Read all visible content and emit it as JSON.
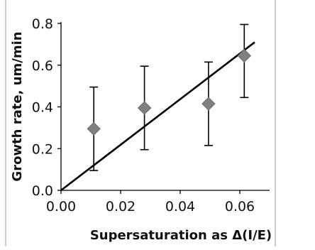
{
  "chart_data": {
    "type": "scatter",
    "xlabel": "Supersaturation as Δ(I/E)",
    "ylabel": "Growth rate, um/min",
    "xlim": [
      0,
      0.07
    ],
    "ylim": [
      0,
      0.8
    ],
    "x_ticks": [
      "0.00",
      "0.02",
      "0.04",
      "0.06"
    ],
    "y_ticks": [
      "0.0",
      "0.2",
      "0.4",
      "0.6",
      "0.8"
    ],
    "x_tick_values": [
      0,
      0.02,
      0.04,
      0.06
    ],
    "y_tick_values": [
      0,
      0.2,
      0.4,
      0.6,
      0.8
    ],
    "grid": false,
    "marker": "diamond",
    "series": [
      {
        "points": [
          {
            "x": 0.011,
            "y": 0.295,
            "err_low": 0.095,
            "err_high": 0.495
          },
          {
            "x": 0.028,
            "y": 0.395,
            "err_low": 0.195,
            "err_high": 0.595
          },
          {
            "x": 0.0495,
            "y": 0.415,
            "err_low": 0.215,
            "err_high": 0.615
          },
          {
            "x": 0.0615,
            "y": 0.645,
            "err_low": 0.445,
            "err_high": 0.795
          }
        ]
      }
    ],
    "trendline": {
      "x": [
        0,
        0.065
      ],
      "y": [
        0,
        0.71
      ]
    },
    "colors": {
      "marker": "#808080",
      "line": "#000000",
      "axis": "#000000"
    }
  }
}
